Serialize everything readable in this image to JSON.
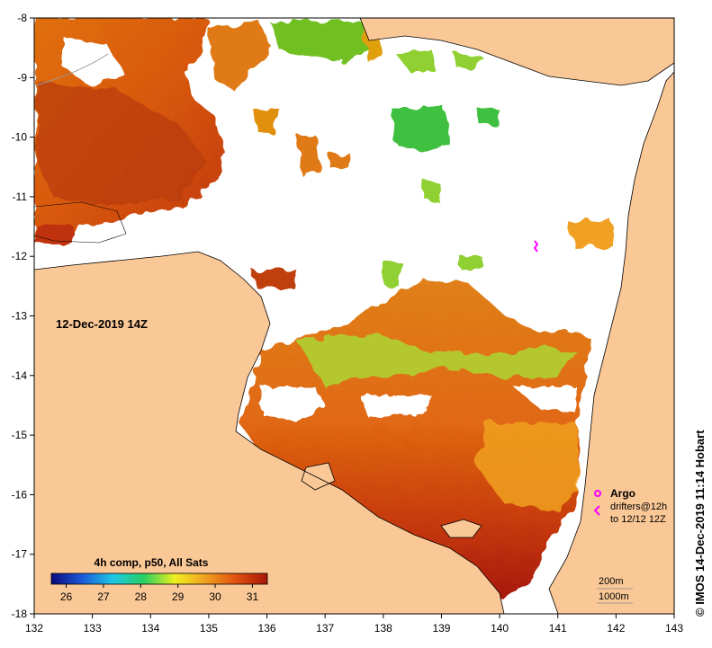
{
  "map": {
    "date_label": "12-Dec-2019 14Z",
    "colorbar": {
      "title": "4h comp, p50, All Sats",
      "ticks": [
        "26",
        "27",
        "28",
        "29",
        "30",
        "31"
      ],
      "min": 25.6,
      "max": 31.4,
      "stops": [
        "#0a0a80",
        "#1c5ad8",
        "#1ec8e8",
        "#28d060",
        "#f0f020",
        "#f0a020",
        "#e05010",
        "#a81808"
      ]
    },
    "x_axis": {
      "min": 132,
      "max": 143,
      "ticks": [
        "132",
        "133",
        "134",
        "135",
        "136",
        "137",
        "138",
        "139",
        "140",
        "141",
        "142",
        "143"
      ]
    },
    "y_axis": {
      "min": -18,
      "max": -8,
      "ticks": [
        "-8",
        "-9",
        "-10",
        "-11",
        "-12",
        "-13",
        "-14",
        "-15",
        "-16",
        "-17",
        "-18"
      ]
    },
    "legend": {
      "argo_label": "Argo",
      "drifters_label": "drifters@12h",
      "drifters_range": "to 12/12 12Z",
      "argo_color": "#ff00ff"
    },
    "contours": {
      "first": "200m",
      "second": "1000m"
    },
    "credit": "© IMOS 14-Dec-2019 11:14 Hobart",
    "land_color": "#fac896"
  }
}
